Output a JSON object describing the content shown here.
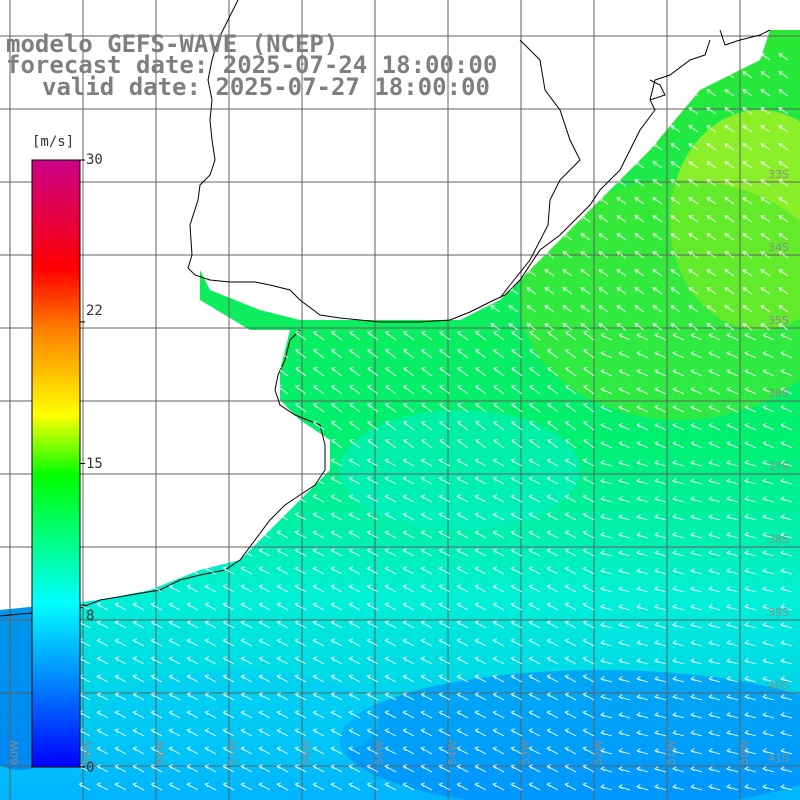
{
  "header": {
    "line1": "modelo GEFS-WAVE (NCEP)",
    "line2": "forecast date: 2025-07-24 18:00:00",
    "line3": "valid date: 2025-07-27 18:00:00"
  },
  "colorbar": {
    "unit": "[m/s]",
    "ticks": [
      "30",
      "22",
      "15",
      "8",
      "0"
    ],
    "min": 0,
    "max": 30,
    "stops": [
      "#0000ff",
      "#00ffff",
      "#00ff00",
      "#ffff00",
      "#ff8000",
      "#ff0000",
      "#cc0088"
    ]
  },
  "latitude_labels": [
    "33S",
    "34S",
    "35S",
    "36S",
    "37S",
    "38S",
    "39S",
    "40S",
    "41S"
  ],
  "longitude_labels": [
    "60W",
    "59W",
    "58W",
    "57W",
    "56W",
    "55W",
    "54W",
    "53W",
    "52W",
    "51W",
    "50W"
  ],
  "colors": {
    "land": "#ffffff",
    "grid": "#606060",
    "coast": "#000000",
    "arrow": "#ffffff",
    "title": "#7f7f7f"
  }
}
